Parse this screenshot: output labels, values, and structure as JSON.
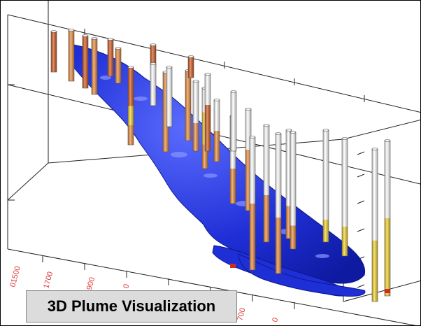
{
  "caption": {
    "title": "3D Plume Visualization"
  },
  "axis_tick_labels": [
    "01500",
    "1700",
    "1900",
    "0",
    "0",
    "700",
    "0"
  ],
  "colors": {
    "plume": "#1f2fd6",
    "plume_highlight": "#6a78ff",
    "well_casing": "#ffffff",
    "well_orange": "#e98a3c",
    "well_dark_orange": "#d2571c",
    "well_yellow": "#f2d22a",
    "well_red": "#d12b1f",
    "axis": "#222222",
    "tick_label": "#e04040"
  }
}
